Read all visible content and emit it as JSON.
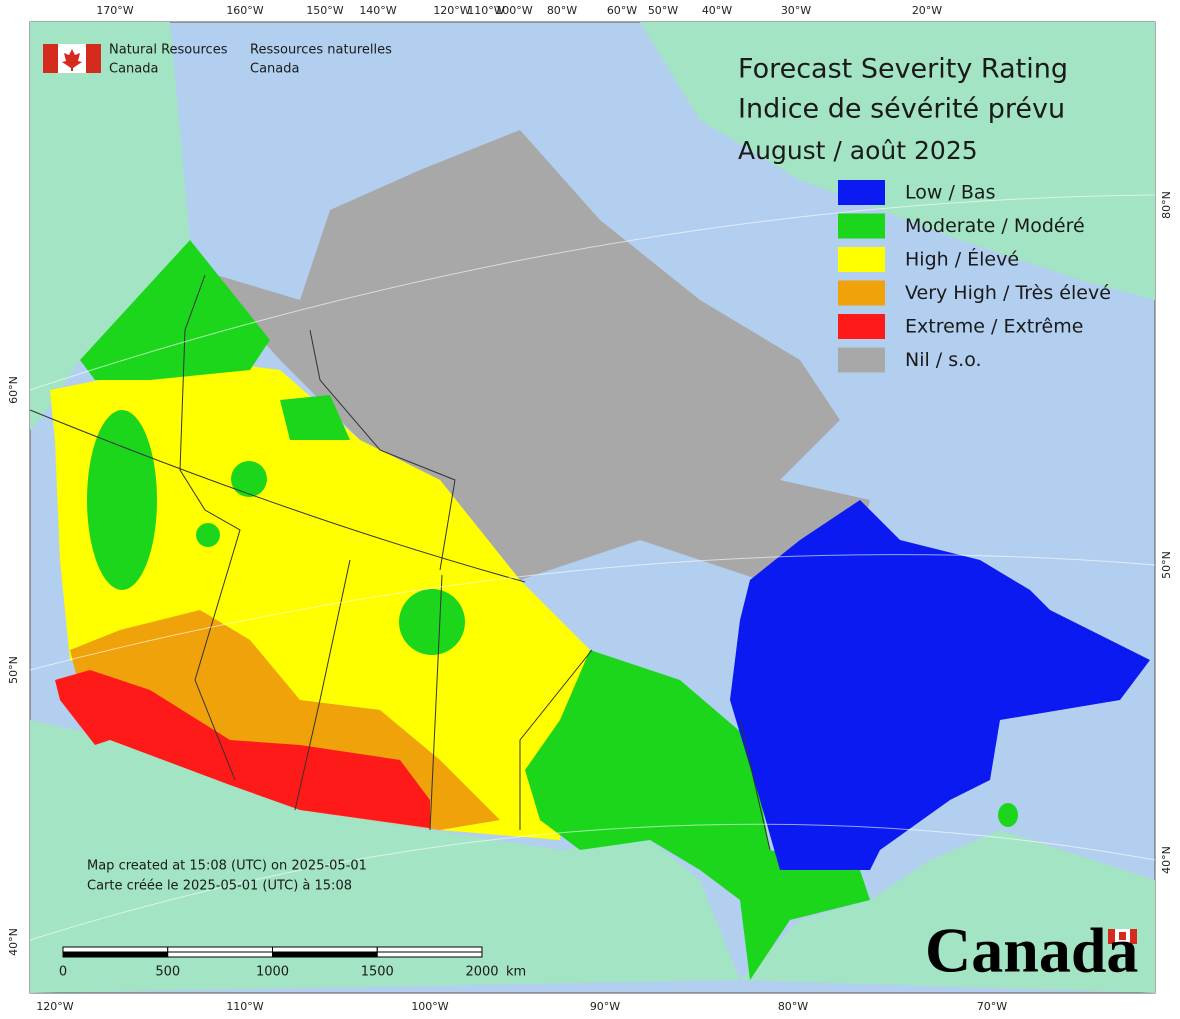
{
  "logo": {
    "en_line1": "Natural Resources",
    "en_line2": "Canada",
    "fr_line1": "Ressources naturelles",
    "fr_line2": "Canada"
  },
  "title": {
    "line1": "Forecast Severity Rating",
    "line2": "Indice de sévérité prévu",
    "line3": "August / août 2025"
  },
  "legend": [
    {
      "label": "Low / Bas",
      "color": "#0a1af0"
    },
    {
      "label": "Moderate / Modéré",
      "color": "#1bd61b"
    },
    {
      "label": "High / Élevé",
      "color": "#ffff00"
    },
    {
      "label": "Very High / Très élevé",
      "color": "#f0a20a"
    },
    {
      "label": "Extreme / Extrême",
      "color": "#ff1a1a"
    },
    {
      "label": "Nil / s.o.",
      "color": "#a8a8a8"
    }
  ],
  "graticule": {
    "top": [
      "170°W",
      "160°W",
      "150°W",
      "140°W",
      "120°W",
      "110°W",
      "100°W",
      "80°W",
      "60°W",
      "50°W",
      "40°W",
      "30°W",
      "20°W"
    ],
    "bottom": [
      "120°W",
      "110°W",
      "100°W",
      "90°W",
      "80°W",
      "70°W"
    ],
    "left": [
      "60°N",
      "50°N",
      "40°N"
    ],
    "right": [
      "80°N",
      "50°N",
      "40°N"
    ]
  },
  "note": {
    "line1": "Map created at 15:08 (UTC) on 2025-05-01",
    "line2": "Carte créée le 2025-05-01 (UTC) à 15:08"
  },
  "scale_bar": {
    "labels": [
      "0",
      "500",
      "1000",
      "1500",
      "2000"
    ],
    "unit": "km"
  },
  "wordmark": "Canada"
}
